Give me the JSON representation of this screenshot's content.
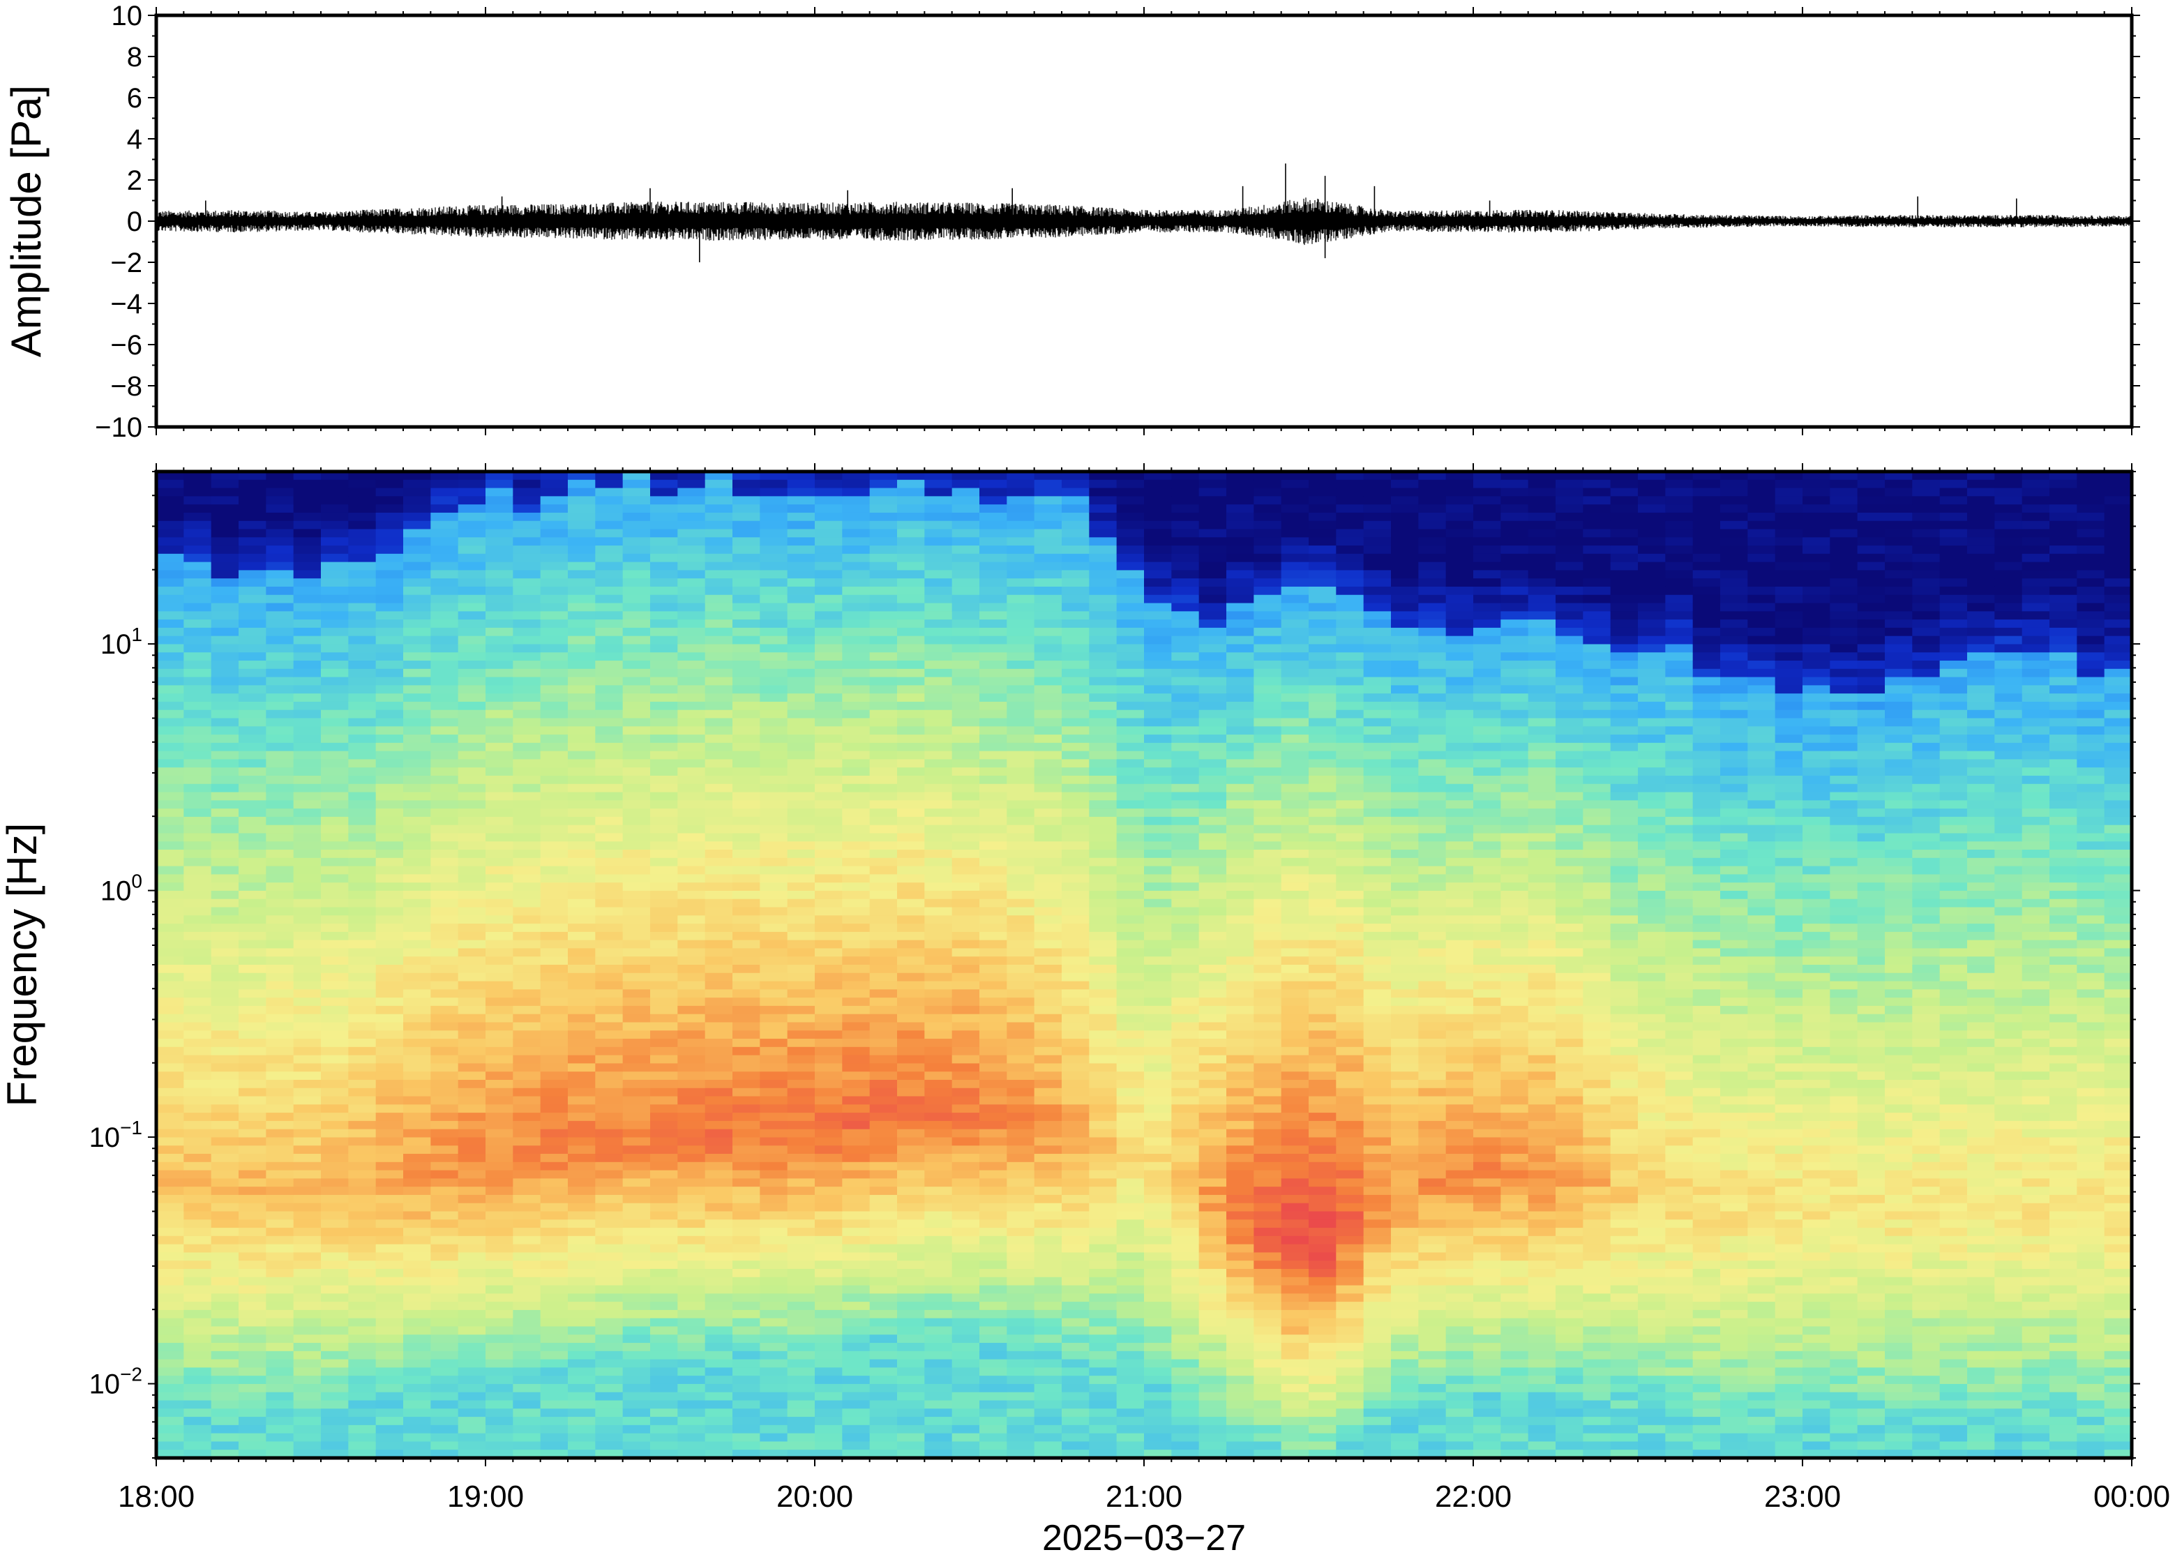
{
  "chart_data": [
    {
      "type": "line",
      "description_of_series": "infrasound waveform",
      "ylabel": "Amplitude [Pa]",
      "ylim": [
        -10,
        10
      ],
      "yticks": [
        {
          "value": 10,
          "label": "10"
        },
        {
          "value": 8,
          "label": "8"
        },
        {
          "value": 6,
          "label": "6"
        },
        {
          "value": 4,
          "label": "4"
        },
        {
          "value": 2,
          "label": "2"
        },
        {
          "value": 0,
          "label": "0"
        },
        {
          "value": -2,
          "label": "−2"
        },
        {
          "value": -4,
          "label": "−4"
        },
        {
          "value": -6,
          "label": "−6"
        },
        {
          "value": -8,
          "label": "−8"
        },
        {
          "value": -10,
          "label": "−10"
        }
      ],
      "xlim_hours": [
        18,
        24
      ],
      "envelope": {
        "hours": [
          18.0,
          18.25,
          18.5,
          18.75,
          19.0,
          19.25,
          19.5,
          19.75,
          20.0,
          20.25,
          20.5,
          20.75,
          21.0,
          21.25,
          21.4,
          21.5,
          21.6,
          21.75,
          22.0,
          22.25,
          22.5,
          22.75,
          23.0,
          23.25,
          23.5,
          23.75,
          24.0
        ],
        "amplitude_pa": [
          0.5,
          0.55,
          0.45,
          0.65,
          0.8,
          0.85,
          0.95,
          0.95,
          0.9,
          0.95,
          0.9,
          0.8,
          0.55,
          0.55,
          0.9,
          1.2,
          0.9,
          0.5,
          0.55,
          0.55,
          0.4,
          0.3,
          0.25,
          0.3,
          0.3,
          0.3,
          0.25
        ]
      },
      "peak_spikes": [
        {
          "hour": 18.15,
          "value": 1.0
        },
        {
          "hour": 19.05,
          "value": 1.2
        },
        {
          "hour": 19.5,
          "value": 1.6
        },
        {
          "hour": 19.65,
          "value": -2.0
        },
        {
          "hour": 20.1,
          "value": 1.5
        },
        {
          "hour": 20.6,
          "value": 1.6
        },
        {
          "hour": 21.3,
          "value": 1.7
        },
        {
          "hour": 21.43,
          "value": 2.8
        },
        {
          "hour": 21.55,
          "value": 2.2
        },
        {
          "hour": 21.55,
          "value": -1.8
        },
        {
          "hour": 21.7,
          "value": 1.7
        },
        {
          "hour": 22.05,
          "value": 1.0
        },
        {
          "hour": 23.35,
          "value": 1.2
        },
        {
          "hour": 23.65,
          "value": 1.1
        }
      ]
    },
    {
      "type": "heatmap",
      "ylabel": "Frequency [Hz]",
      "yscale": "log",
      "ylim_hz": [
        0.005,
        50
      ],
      "yticks": [
        {
          "value": 0.01,
          "base": "10",
          "exp": "−2"
        },
        {
          "value": 0.1,
          "base": "10",
          "exp": "−1"
        },
        {
          "value": 1,
          "base": "10",
          "exp": "0"
        },
        {
          "value": 10,
          "base": "10",
          "exp": "1"
        }
      ],
      "colormap": [
        "#0a0a78",
        "#0f2dc8",
        "#1e73f0",
        "#3cb4f5",
        "#6ee6c8",
        "#c8f08c",
        "#f5f08c",
        "#fac864",
        "#f5823c",
        "#eb4b4b"
      ],
      "time_hours": [
        18.0,
        18.25,
        18.5,
        18.75,
        19.0,
        19.25,
        19.5,
        19.75,
        20.0,
        20.25,
        20.5,
        20.75,
        21.0,
        21.25,
        21.4,
        21.5,
        21.6,
        21.75,
        22.0,
        22.25,
        22.5,
        22.75,
        23.0,
        23.25,
        23.5,
        23.75,
        24.0
      ],
      "upper_cutoff_hz": [
        25,
        20,
        20,
        28,
        38,
        42,
        45,
        45,
        43,
        42,
        40,
        38,
        17,
        13,
        16,
        20,
        17,
        13,
        11,
        12,
        10,
        7.5,
        7,
        7,
        8,
        9,
        8
      ],
      "peak_band_hz": [
        0.06,
        0.06,
        0.06,
        0.07,
        0.08,
        0.09,
        0.1,
        0.1,
        0.1,
        0.12,
        0.12,
        0.1,
        0.08,
        0.05,
        0.04,
        0.035,
        0.04,
        0.06,
        0.07,
        0.07,
        0.06,
        0.05,
        0.05,
        0.05,
        0.05,
        0.05,
        0.05
      ],
      "peak_intensity": [
        0.78,
        0.8,
        0.8,
        0.85,
        0.88,
        0.9,
        0.9,
        0.92,
        0.92,
        0.92,
        0.9,
        0.85,
        0.7,
        0.88,
        0.97,
        1.0,
        0.97,
        0.85,
        0.88,
        0.86,
        0.75,
        0.72,
        0.7,
        0.7,
        0.7,
        0.7,
        0.72
      ]
    }
  ],
  "x_axis": {
    "ticks": [
      {
        "hour": 18,
        "label": "18:00"
      },
      {
        "hour": 19,
        "label": "19:00"
      },
      {
        "hour": 20,
        "label": "20:00"
      },
      {
        "hour": 21,
        "label": "21:00"
      },
      {
        "hour": 22,
        "label": "22:00"
      },
      {
        "hour": 23,
        "label": "23:00"
      },
      {
        "hour": 24,
        "label": "00:00"
      }
    ],
    "date_label": "2025−03−27"
  }
}
